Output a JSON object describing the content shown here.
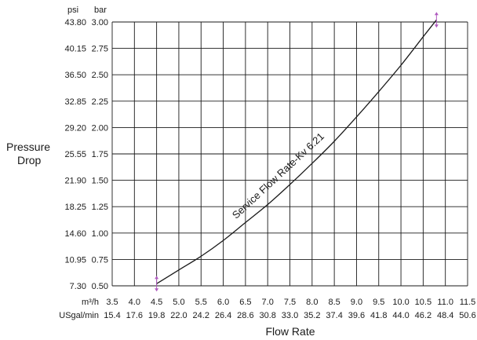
{
  "chart_data": {
    "type": "line",
    "xlabel": "Flow Rate",
    "ylabel_line1": "Pressure",
    "ylabel_line2": "Drop",
    "y_units": {
      "psi": "psi",
      "bar": "bar"
    },
    "x_units": {
      "m3h": "m³/h",
      "usgal": "USgal/min"
    },
    "x_ticks_m3h": [
      "3.5",
      "4.0",
      "4.5",
      "5.0",
      "5.5",
      "6.0",
      "6.5",
      "7.0",
      "7.5",
      "8.0",
      "8.5",
      "9.0",
      "9.5",
      "10.0",
      "10.5",
      "11.0",
      "11.5"
    ],
    "x_ticks_usgal": [
      "15.4",
      "17.6",
      "19.8",
      "22.0",
      "24.2",
      "26.4",
      "28.6",
      "30.8",
      "33.0",
      "35.2",
      "37.4",
      "39.6",
      "41.8",
      "44.0",
      "46.2",
      "48.4",
      "50.6"
    ],
    "y_ticks_psi": [
      "7.30",
      "10.95",
      "14.60",
      "18.25",
      "21.90",
      "25.55",
      "29.20",
      "32.85",
      "36.50",
      "40.15",
      "43.80"
    ],
    "y_ticks_bar": [
      "0.50",
      "0.75",
      "1.00",
      "1.25",
      "1.50",
      "1.75",
      "2.00",
      "2.25",
      "2.50",
      "2.75",
      "3.00"
    ],
    "xlim": [
      3.5,
      11.5
    ],
    "ylim": [
      0.5,
      3.0
    ],
    "grid": true,
    "series": [
      {
        "name": "Service Flow Rate-Kv 6.21",
        "x": [
          4.5,
          5.0,
          5.5,
          6.0,
          6.5,
          7.0,
          7.5,
          8.0,
          8.5,
          9.0,
          9.5,
          10.0,
          10.5,
          10.8
        ],
        "y": [
          0.52,
          0.65,
          0.78,
          0.93,
          1.1,
          1.27,
          1.46,
          1.66,
          1.87,
          2.1,
          2.34,
          2.59,
          2.86,
          3.02
        ]
      }
    ],
    "markers": [
      {
        "x": 4.5,
        "y": 0.52
      },
      {
        "x": 10.8,
        "y": 3.02
      }
    ],
    "colors": {
      "curve": "#1a1a1a",
      "grid": "#1a1a1a",
      "marker": "#b05cc0"
    }
  }
}
